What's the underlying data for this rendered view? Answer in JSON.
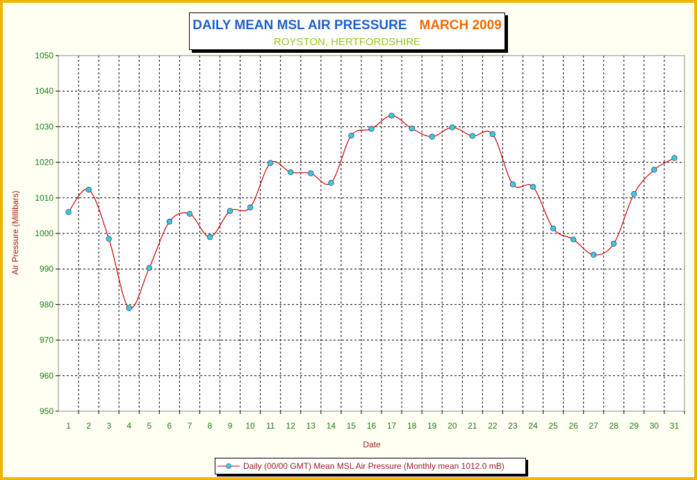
{
  "title": {
    "main": "DAILY MEAN MSL AIR PRESSURE",
    "month": "MARCH 2009",
    "subtitle": "ROYSTON, HERTFORDSHIRE"
  },
  "colors": {
    "border": "#f0b400",
    "background": "#fffff2",
    "line": "#cc0000",
    "marker_fill": "#33ccee",
    "axis_text": "#1a7a1a",
    "axis_title": "#9b1a1a"
  },
  "chart_data": {
    "type": "line",
    "xlabel": "Date",
    "ylabel": "Air Pressure (Millibars)",
    "ylim": [
      950,
      1050
    ],
    "yticks": [
      950,
      960,
      970,
      980,
      990,
      1000,
      1010,
      1020,
      1030,
      1040,
      1050
    ],
    "grid": true,
    "legend_position": "bottom-center",
    "x": [
      1,
      2,
      3,
      4,
      5,
      6,
      7,
      8,
      9,
      10,
      11,
      12,
      13,
      14,
      15,
      16,
      17,
      18,
      19,
      20,
      21,
      22,
      23,
      24,
      25,
      26,
      27,
      28,
      29,
      30,
      31
    ],
    "series": [
      {
        "name": "Daily (00/00 GMT) Mean MSL Air Pressure (Monthly mean 1012.0 mB)",
        "values": [
          1006.0,
          1012.3,
          998.5,
          979.0,
          990.3,
          1003.3,
          1005.5,
          999.0,
          1006.3,
          1007.3,
          1019.8,
          1017.2,
          1016.9,
          1014.2,
          1027.5,
          1029.4,
          1033.1,
          1029.5,
          1027.2,
          1029.8,
          1027.4,
          1027.9,
          1013.8,
          1013.1,
          1001.4,
          998.3,
          994.0,
          997.1,
          1011.1,
          1017.9,
          1021.2
        ]
      }
    ]
  }
}
